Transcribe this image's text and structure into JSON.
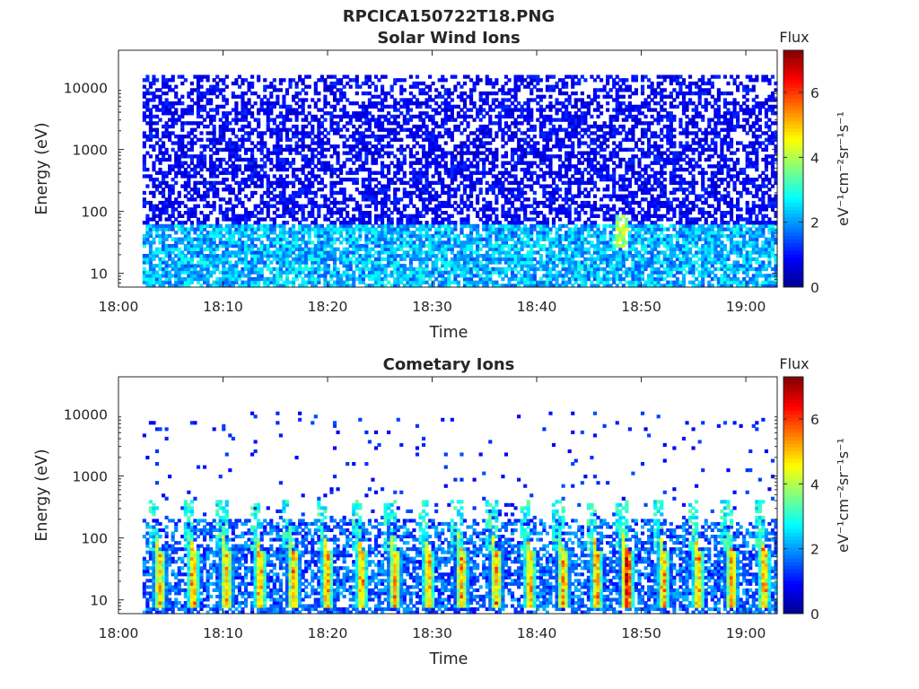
{
  "figure": {
    "filename": "RPCICA150722T18.PNG"
  },
  "colormap": {
    "name": "jet",
    "stops": [
      "#00008f",
      "#0000ff",
      "#0080ff",
      "#00ffff",
      "#80ff80",
      "#ffff00",
      "#ff8000",
      "#ff0000",
      "#800000"
    ]
  },
  "chart_data": [
    {
      "type": "heatmap",
      "title": "Solar Wind Ions",
      "xlabel": "Time",
      "ylabel": "Energy (eV)",
      "x_ticks": [
        "18:00",
        "18:10",
        "18:20",
        "18:30",
        "18:40",
        "18:50",
        "19:00"
      ],
      "x_tick_minutes": [
        0,
        10,
        20,
        30,
        40,
        50,
        60
      ],
      "xlim_minutes": [
        0,
        63
      ],
      "data_start_minute": 2.3,
      "y_scale": "log",
      "y_ticks": [
        "10",
        "100",
        "1000",
        "10000"
      ],
      "y_tick_values": [
        10,
        100,
        1000,
        10000
      ],
      "ylim": [
        6,
        40000
      ],
      "data_ymax": 16000,
      "colorbar": {
        "label": "Flux",
        "unit": "eV⁻¹cm⁻²sr⁻¹s⁻¹",
        "ticks": [
          "0",
          "2",
          "4",
          "6"
        ],
        "tick_values": [
          0,
          2,
          4,
          6
        ],
        "range": [
          0,
          7.3
        ]
      },
      "profile": {
        "description_levels": "flux vs log10(energy): mostly 0.3-1.5 across 30 eV-16 keV, 2-3.2 near 6-60 eV",
        "low_energy_level": 2.6,
        "high_energy_level": 0.9,
        "fill_probability": 0.55,
        "feature_minute": 48,
        "feature_level": 4.2
      }
    },
    {
      "type": "heatmap",
      "title": "Cometary Ions",
      "xlabel": "Time",
      "ylabel": "Energy (eV)",
      "x_ticks": [
        "18:00",
        "18:10",
        "18:20",
        "18:30",
        "18:40",
        "18:50",
        "19:00"
      ],
      "x_tick_minutes": [
        0,
        10,
        20,
        30,
        40,
        50,
        60
      ],
      "xlim_minutes": [
        0,
        63
      ],
      "data_start_minute": 2.3,
      "y_scale": "log",
      "y_ticks": [
        "10",
        "100",
        "1000",
        "10000"
      ],
      "y_tick_values": [
        10,
        100,
        1000,
        10000
      ],
      "ylim": [
        6,
        40000
      ],
      "data_ymax": 11000,
      "colorbar": {
        "label": "Flux",
        "unit": "eV⁻¹cm⁻²sr⁻¹s⁻¹",
        "ticks": [
          "0",
          "2",
          "4",
          "6"
        ],
        "tick_values": [
          0,
          2,
          4,
          6
        ],
        "range": [
          0,
          7.3
        ]
      },
      "bursts_minutes": [
        3.8,
        7.0,
        10.2,
        13.4,
        16.6,
        19.8,
        23.1,
        26.3,
        29.5,
        32.7,
        36.0,
        39.2,
        42.4,
        45.6,
        48.5,
        52.0,
        55.3,
        58.5,
        61.6
      ],
      "burst_energy_range_eV": [
        8,
        60
      ],
      "burst_peak_flux": 6.5,
      "strongest_burst_minute": 48.5,
      "strongest_burst_flux": 7.0
    }
  ]
}
